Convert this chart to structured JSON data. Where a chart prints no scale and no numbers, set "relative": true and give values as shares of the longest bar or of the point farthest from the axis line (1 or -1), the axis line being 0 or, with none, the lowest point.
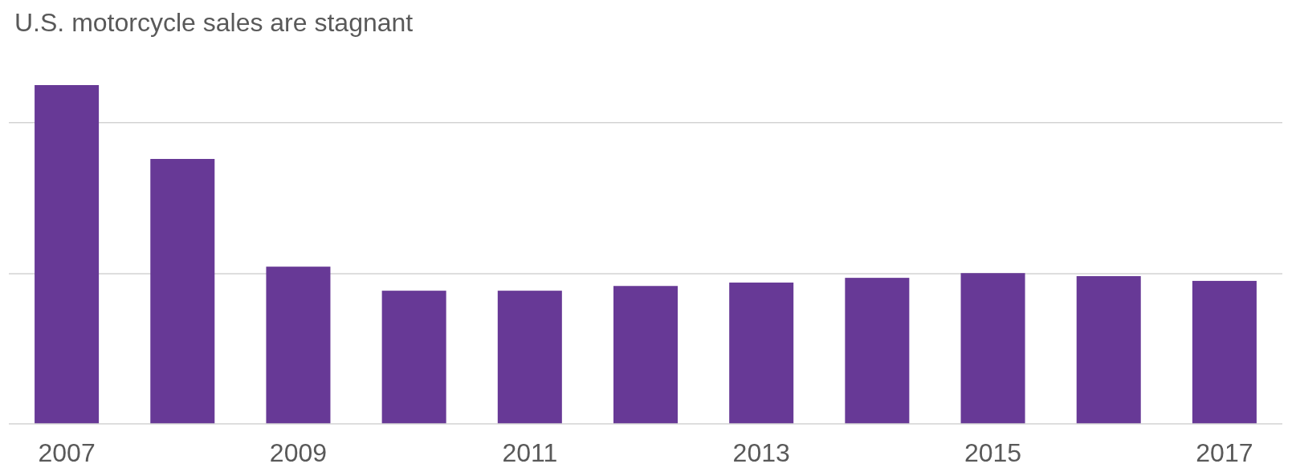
{
  "chart_data": {
    "type": "bar",
    "title": "U.S. motorcycle sales are stagnant",
    "categories": [
      "2007",
      null,
      "2009",
      null,
      "2011",
      null,
      "2013",
      null,
      "2015",
      null,
      "2017"
    ],
    "values": [
      1,
      0.782,
      0.464,
      0.393,
      0.393,
      0.407,
      0.417,
      0.431,
      0.445,
      0.436,
      0.422
    ],
    "color": "#673996",
    "relative": true,
    "ref_lines": [
      {
        "axis": "y",
        "value": 0.443,
        "color": "#d3d3d3"
      },
      {
        "axis": "y",
        "value": 0.889,
        "color": "#d3d3d3"
      }
    ]
  }
}
